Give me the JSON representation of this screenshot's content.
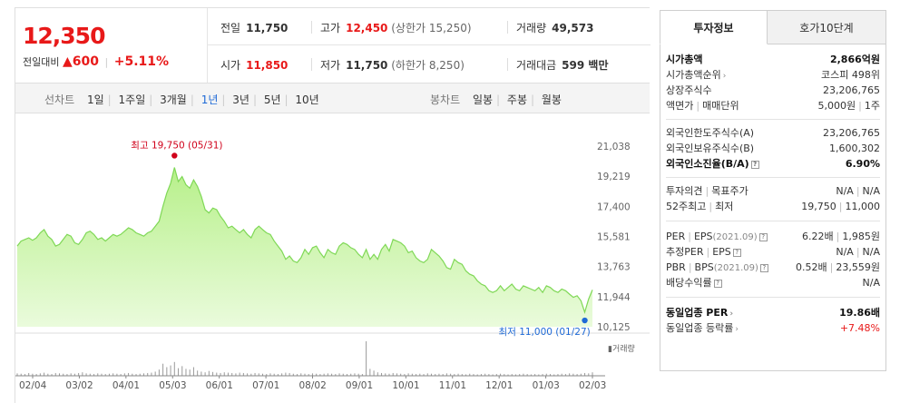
{
  "quote": {
    "price": "12,350",
    "change_label": "전일대비",
    "change_arrow": "▲",
    "change_value": "600",
    "change_pct": "+5.11%",
    "prev_close": {
      "label": "전일",
      "value": "11,750"
    },
    "open": {
      "label": "시가",
      "value": "11,850"
    },
    "high": {
      "label": "고가",
      "value": "12,450",
      "sub": "(상한가 15,250)"
    },
    "low": {
      "label": "저가",
      "value": "11,750",
      "sub": "(하한가 8,250)"
    },
    "volume": {
      "label": "거래량",
      "value": "49,573"
    },
    "turnover": {
      "label": "거래대금",
      "value": "599 백만"
    }
  },
  "chart_tabs": {
    "line_title": "선차트",
    "line_tabs": [
      "1일",
      "1주일",
      "3개월",
      "1년",
      "3년",
      "5년",
      "10년"
    ],
    "line_active": "1년",
    "candle_title": "봉차트",
    "candle_tabs": [
      "일봉",
      "주봉",
      "월봉"
    ]
  },
  "colors": {
    "accent_red": "#e81919",
    "tab_blue": "#1f6ad6",
    "area_fill": "#c9f5a4",
    "line": "#7fd856"
  },
  "chart_data": {
    "type": "area",
    "y_ticks": [
      "21,038",
      "19,219",
      "17,400",
      "15,581",
      "13,763",
      "11,944",
      "10,125"
    ],
    "ylim": [
      10125,
      21038
    ],
    "x_tick_labels": [
      "02/04",
      "03/02",
      "04/01",
      "05/03",
      "06/01",
      "07/01",
      "08/02",
      "09/01",
      "10/01",
      "11/01",
      "12/01",
      "01/03",
      "02/03"
    ],
    "high_annotation": "최고 19,750 (05/31)",
    "low_annotation": "최저 11,000 (01/27)",
    "volume_label": "거래량",
    "series": [
      {
        "values": [
          15000,
          15300,
          15400,
          15500,
          15350,
          15500,
          15800,
          16000,
          15600,
          15400,
          15000,
          15100,
          15400,
          15700,
          15600,
          15200,
          15100,
          15400,
          15800,
          15900,
          15700,
          15400,
          15500,
          15300,
          15500,
          15700,
          15600,
          15700,
          15900,
          16100,
          16000,
          15800,
          15700,
          15600,
          15800,
          15900,
          16200,
          16500,
          17400,
          18200,
          18800,
          19750,
          18900,
          19200,
          18700,
          18500,
          19000,
          18600,
          18000,
          17200,
          17000,
          17300,
          17200,
          16800,
          16500,
          16100,
          16200,
          16000,
          15800,
          16000,
          15700,
          15500,
          16000,
          16200,
          16000,
          15800,
          15700,
          15300,
          15000,
          14700,
          14200,
          14400,
          14100,
          14000,
          14300,
          14800,
          14500,
          14900,
          15000,
          14600,
          14300,
          14800,
          14600,
          14500,
          15000,
          15200,
          15100,
          14900,
          14800,
          14500,
          14300,
          14800,
          14200,
          14500,
          14200,
          14800,
          15100,
          14700,
          15400,
          15300,
          15200,
          15000,
          14600,
          14700,
          14300,
          14100,
          14000,
          14200,
          14800,
          14600,
          14400,
          14100,
          13700,
          13600,
          14200,
          14000,
          13900,
          13500,
          13300,
          13200,
          12900,
          12700,
          12600,
          12300,
          12200,
          12300,
          12600,
          12300,
          12500,
          12700,
          12400,
          12300,
          12600,
          12500,
          12400,
          12300,
          12500,
          12200,
          12600,
          12500,
          12300,
          12200,
          12400,
          12300,
          12100,
          11900,
          12000,
          11700,
          11000,
          11800,
          12350
        ]
      }
    ],
    "volume": [
      0.07,
      0.06,
      0.05,
      0.08,
      0.06,
      0.05,
      0.07,
      0.09,
      0.06,
      0.05,
      0.08,
      0.07,
      0.06,
      0.05,
      0.07,
      0.06,
      0.08,
      0.1,
      0.07,
      0.06,
      0.05,
      0.07,
      0.06,
      0.05,
      0.06,
      0.07,
      0.06,
      0.05,
      0.07,
      0.08,
      0.06,
      0.05,
      0.06,
      0.07,
      0.08,
      0.09,
      0.12,
      0.18,
      0.35,
      0.25,
      0.3,
      0.4,
      0.22,
      0.28,
      0.2,
      0.18,
      0.25,
      0.15,
      0.12,
      0.1,
      0.14,
      0.11,
      0.09,
      0.08,
      0.1,
      0.09,
      0.08,
      0.07,
      0.09,
      0.08,
      0.07,
      0.06,
      0.08,
      0.07,
      0.06,
      0.05,
      0.07,
      0.06,
      0.05,
      0.07,
      0.09,
      0.08,
      0.06,
      0.05,
      0.07,
      0.06,
      0.05,
      0.07,
      0.06,
      0.05,
      0.06,
      0.07,
      0.06,
      0.05,
      0.07,
      0.06,
      0.05,
      0.06,
      0.07,
      0.06,
      0.05,
      1.0,
      0.2,
      0.15,
      0.1,
      0.08,
      0.07,
      0.06,
      0.08,
      0.07,
      0.06,
      0.05,
      0.07,
      0.06,
      0.05,
      0.06,
      0.05,
      0.07,
      0.06,
      0.05,
      0.06,
      0.05,
      0.07,
      0.06,
      0.05,
      0.06,
      0.05,
      0.04,
      0.06,
      0.05,
      0.04,
      0.05,
      0.06,
      0.05,
      0.04,
      0.05,
      0.06,
      0.05,
      0.04,
      0.05,
      0.04,
      0.05,
      0.06,
      0.05,
      0.04,
      0.05,
      0.04,
      0.05,
      0.06,
      0.05,
      0.04,
      0.05,
      0.06,
      0.05,
      0.07,
      0.06,
      0.05,
      0.06,
      0.08,
      0.07,
      0.1
    ]
  },
  "info": {
    "tab_active": "투자정보",
    "tab_other": "호가10단계",
    "s1": [
      {
        "k": "시가총액",
        "v": "2,866억원",
        "bold": true
      },
      {
        "k": "시가총액순위",
        "v": "코스피 498위",
        "arrow": true
      },
      {
        "k": "상장주식수",
        "v": "23,206,765"
      },
      {
        "k": "액면가",
        "k2": "매매단위",
        "v": "5,000원",
        "v2": "1주"
      }
    ],
    "s2": [
      {
        "k": "외국인한도주식수(A)",
        "v": "23,206,765"
      },
      {
        "k": "외국인보유주식수(B)",
        "v": "1,600,302"
      },
      {
        "k": "외국인소진율(B/A)",
        "v": "6.90%",
        "bold": true,
        "q": true
      }
    ],
    "s3": [
      {
        "k": "투자의견",
        "k2": "목표주가",
        "v": "N/A",
        "v2": "N/A"
      },
      {
        "k": "52주최고",
        "k2": "최저",
        "v": "19,750",
        "v2": "11,000"
      }
    ],
    "s4": [
      {
        "k": "PER",
        "k2": "EPS",
        "k3": "(2021.09)",
        "v": "6.22배",
        "v2": "1,985원",
        "q": true
      },
      {
        "k": "추정PER",
        "k2": "EPS",
        "v": "N/A",
        "v2": "N/A",
        "q": true
      },
      {
        "k": "PBR",
        "k2": "BPS",
        "k3": "(2021.09)",
        "v": "0.52배",
        "v2": "23,559원",
        "q": true
      },
      {
        "k": "배당수익률",
        "v": "N/A",
        "q": true
      }
    ],
    "s5": [
      {
        "k": "동일업종 PER",
        "v": "19.86배",
        "bold": true,
        "arrow": true
      },
      {
        "k": "동일업종 등락률",
        "v": "+7.48%",
        "red": true,
        "arrow": true
      }
    ]
  }
}
